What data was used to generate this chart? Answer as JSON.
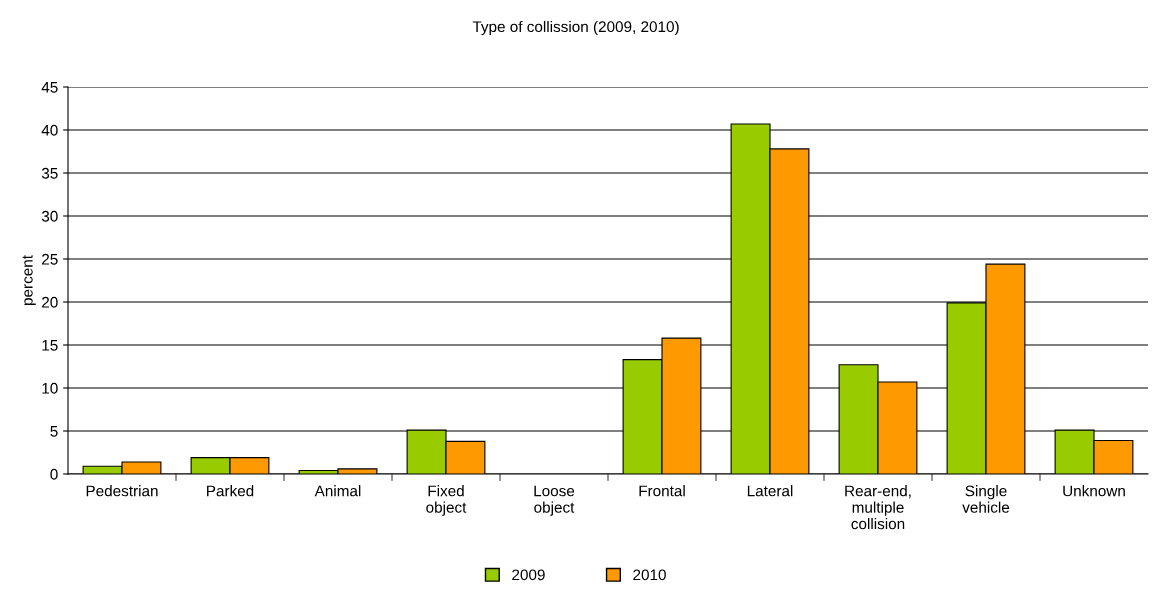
{
  "chart_data": {
    "type": "bar",
    "title": "Type of collission (2009, 2010)",
    "ylabel": "percent",
    "categories": [
      "Pedestrian",
      "Parked",
      "Animal",
      "Fixed\nobject",
      "Loose\nobject",
      "Frontal",
      "Lateral",
      "Rear-end,\nmultiple\ncollision",
      "Single\nvehicle",
      "Unknown"
    ],
    "series": [
      {
        "name": "2009",
        "color": "#99cc00",
        "values": [
          0.9,
          1.9,
          0.4,
          5.1,
          null,
          13.3,
          40.7,
          12.7,
          19.9,
          5.1
        ]
      },
      {
        "name": "2010",
        "color": "#ff9900",
        "values": [
          1.4,
          1.9,
          0.6,
          3.8,
          null,
          15.8,
          37.8,
          10.7,
          24.4,
          3.9
        ]
      }
    ],
    "ylim": [
      0,
      45
    ],
    "yticks": [
      0,
      5,
      10,
      15,
      20,
      25,
      30,
      35,
      40,
      45
    ],
    "grid": "y",
    "legend": "bottom"
  }
}
